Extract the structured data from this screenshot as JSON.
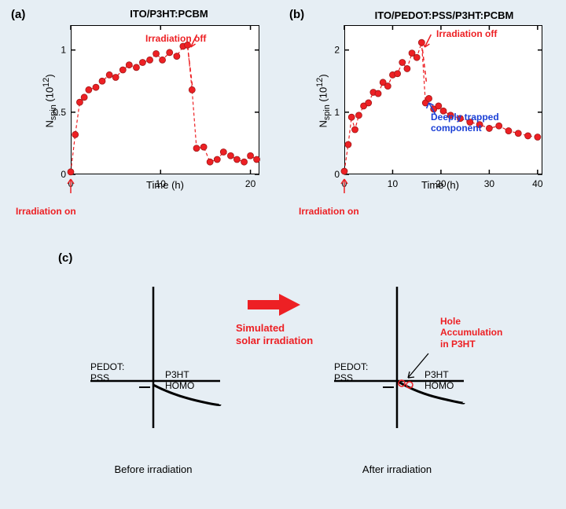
{
  "panels": {
    "a": {
      "label": "(a)",
      "title": "ITO/P3HT:PCBM"
    },
    "b": {
      "label": "(b)",
      "title": "ITO/PEDOT:PSS/P3HT:PCBM"
    },
    "c": {
      "label": "(c)"
    }
  },
  "colors": {
    "background": "#e6eef4",
    "chart_bg": "#ffffff",
    "axis": "#000000",
    "marker_fill": "#ed2024",
    "marker_stroke": "#a01818",
    "line": "#ed2024",
    "annotation_red": "#ed2024",
    "annotation_blue": "#1a3fd6",
    "text": "#000000",
    "arrow_red": "#ed2024"
  },
  "chart_a": {
    "xlim": [
      0,
      21
    ],
    "ylim": [
      0,
      1.2
    ],
    "xticks": [
      0,
      10,
      20
    ],
    "yticks": [
      0,
      0.5,
      1
    ],
    "xlabel": "Time (h)",
    "ylabel_html": "N<sub>spin</sub> (10<sup>12</sup>)",
    "irradiation_off_x": 13,
    "data": [
      [
        0,
        0.02
      ],
      [
        0.5,
        0.32
      ],
      [
        1,
        0.58
      ],
      [
        1.5,
        0.62
      ],
      [
        2,
        0.68
      ],
      [
        2.8,
        0.7
      ],
      [
        3.5,
        0.75
      ],
      [
        4.3,
        0.8
      ],
      [
        5,
        0.78
      ],
      [
        5.8,
        0.84
      ],
      [
        6.5,
        0.88
      ],
      [
        7.3,
        0.86
      ],
      [
        8,
        0.9
      ],
      [
        8.8,
        0.92
      ],
      [
        9.5,
        0.97
      ],
      [
        10.2,
        0.92
      ],
      [
        11,
        0.98
      ],
      [
        11.8,
        0.95
      ],
      [
        12.5,
        1.03
      ],
      [
        13,
        1.04
      ],
      [
        13.5,
        0.68
      ],
      [
        14,
        0.21
      ],
      [
        14.8,
        0.22
      ],
      [
        15.5,
        0.1
      ],
      [
        16.3,
        0.12
      ],
      [
        17,
        0.18
      ],
      [
        17.8,
        0.15
      ],
      [
        18.5,
        0.12
      ],
      [
        19.3,
        0.1
      ],
      [
        20,
        0.15
      ],
      [
        20.7,
        0.12
      ]
    ],
    "annotations": {
      "irr_on": "Irradiation on",
      "irr_off": "Irradiation off"
    }
  },
  "chart_b": {
    "xlim": [
      0,
      41
    ],
    "ylim": [
      0,
      2.4
    ],
    "xticks": [
      0,
      10,
      20,
      30,
      40
    ],
    "yticks": [
      0,
      1,
      2
    ],
    "xlabel": "Time (h)",
    "ylabel_html": "N<sub>spin</sub> (10<sup>12</sup>)",
    "irradiation_off_x": 16,
    "data": [
      [
        0,
        0.05
      ],
      [
        0.8,
        0.48
      ],
      [
        1.5,
        0.92
      ],
      [
        2.2,
        0.72
      ],
      [
        3,
        0.95
      ],
      [
        4,
        1.1
      ],
      [
        5,
        1.15
      ],
      [
        6,
        1.32
      ],
      [
        7,
        1.3
      ],
      [
        8,
        1.48
      ],
      [
        9,
        1.42
      ],
      [
        10,
        1.6
      ],
      [
        11,
        1.62
      ],
      [
        12,
        1.8
      ],
      [
        13,
        1.7
      ],
      [
        14,
        1.95
      ],
      [
        15,
        1.88
      ],
      [
        16,
        2.12
      ],
      [
        16.8,
        1.15
      ],
      [
        17.5,
        1.22
      ],
      [
        18.5,
        1.05
      ],
      [
        19.5,
        1.1
      ],
      [
        20.5,
        1.02
      ],
      [
        22,
        0.95
      ],
      [
        24,
        0.9
      ],
      [
        26,
        0.84
      ],
      [
        28,
        0.8
      ],
      [
        30,
        0.74
      ],
      [
        32,
        0.78
      ],
      [
        34,
        0.7
      ],
      [
        36,
        0.66
      ],
      [
        38,
        0.62
      ],
      [
        40,
        0.6
      ]
    ],
    "annotations": {
      "irr_on": "Irradiation on",
      "irr_off": "Irradiation off",
      "deep_trap": "Deeply trapped\ncomponent"
    }
  },
  "diagram": {
    "arrow_label": "Simulated\nsolar irradiation",
    "left": {
      "pedot": "PEDOT:\nPSS",
      "p3ht": "P3HT\nHOMO",
      "caption": "Before irradiation"
    },
    "right": {
      "pedot": "PEDOT:\nPSS",
      "p3ht": "P3HT\nHOMO",
      "hole": "Hole\nAccumulation\nin P3HT",
      "caption": "After irradiation"
    }
  },
  "style": {
    "marker_radius": 4,
    "line_width": 1.5,
    "title_fontsize": 13,
    "label_fontsize": 12,
    "axis_fontsize": 13
  }
}
